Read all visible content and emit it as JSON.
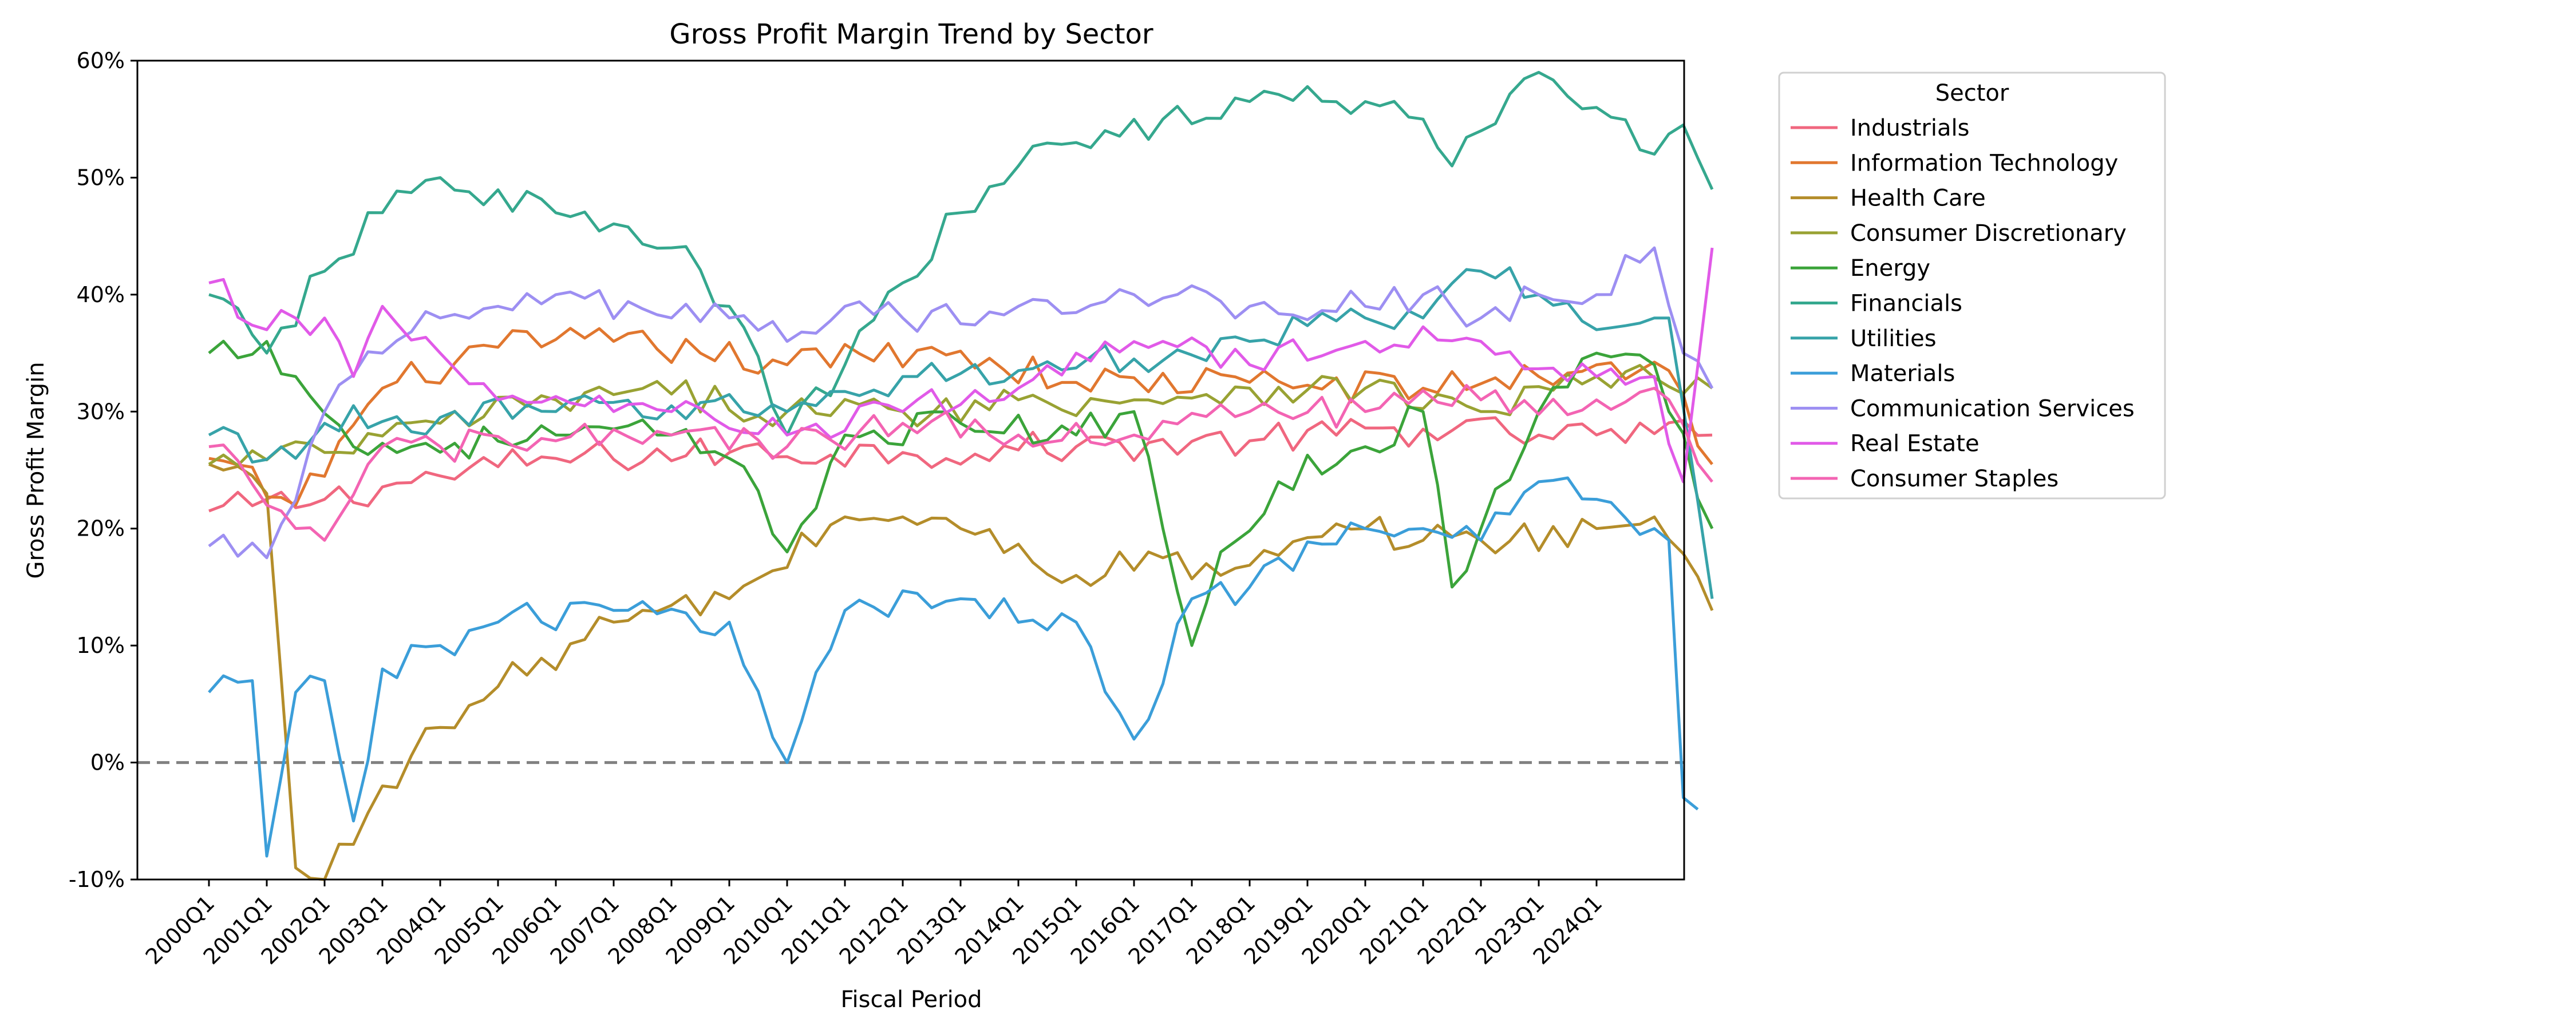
{
  "chart_data": {
    "type": "line",
    "title": "Gross Profit Margin Trend by Sector",
    "xlabel": "Fiscal Period",
    "ylabel": "Gross Profit Margin",
    "ylim": [
      -0.1,
      0.6
    ],
    "yticks": [
      -0.1,
      0.0,
      0.1,
      0.2,
      0.3,
      0.4,
      0.5,
      0.6
    ],
    "ytick_labels": [
      "-10%",
      "0%",
      "10%",
      "20%",
      "30%",
      "40%",
      "50%",
      "60%"
    ],
    "xtick_labels": [
      "2000Q1",
      "2001Q1",
      "2002Q1",
      "2003Q1",
      "2004Q1",
      "2005Q1",
      "2006Q1",
      "2007Q1",
      "2008Q1",
      "2009Q1",
      "2010Q1",
      "2011Q1",
      "2012Q1",
      "2013Q1",
      "2014Q1",
      "2015Q1",
      "2016Q1",
      "2017Q1",
      "2018Q1",
      "2019Q1",
      "2020Q1",
      "2021Q1",
      "2022Q1",
      "2023Q1",
      "2024Q1"
    ],
    "reference_line": {
      "y": 0.0,
      "style": "dashed",
      "color": "#808080"
    },
    "grid": false,
    "legend": {
      "title": "Sector",
      "placement": "outside-right"
    },
    "series": [
      {
        "name": "Industrials",
        "color": "#f0677f",
        "knots": [
          [
            0,
            0.215
          ],
          [
            8,
            0.225
          ],
          [
            16,
            0.245
          ],
          [
            24,
            0.26
          ],
          [
            36,
            0.265
          ],
          [
            48,
            0.265
          ],
          [
            60,
            0.27
          ],
          [
            72,
            0.275
          ],
          [
            84,
            0.285
          ],
          [
            92,
            0.28
          ],
          [
            96,
            0.28
          ],
          [
            104,
            0.28
          ]
        ]
      },
      {
        "name": "Information Technology",
        "color": "#e1772f",
        "knots": [
          [
            0,
            0.26
          ],
          [
            6,
            0.22
          ],
          [
            12,
            0.32
          ],
          [
            20,
            0.355
          ],
          [
            28,
            0.36
          ],
          [
            34,
            0.35
          ],
          [
            40,
            0.34
          ],
          [
            50,
            0.355
          ],
          [
            60,
            0.325
          ],
          [
            72,
            0.325
          ],
          [
            84,
            0.32
          ],
          [
            92,
            0.33
          ],
          [
            96,
            0.34
          ],
          [
            101,
            0.335
          ],
          [
            104,
            0.255
          ]
        ]
      },
      {
        "name": "Health Care",
        "color": "#b48d2a",
        "knots": [
          [
            0,
            0.255
          ],
          [
            1,
            0.25
          ],
          [
            3,
            0.245
          ],
          [
            4,
            0.23
          ],
          [
            6,
            -0.09
          ],
          [
            8,
            -0.1
          ],
          [
            12,
            -0.02
          ],
          [
            16,
            0.03
          ],
          [
            20,
            0.065
          ],
          [
            28,
            0.12
          ],
          [
            36,
            0.14
          ],
          [
            44,
            0.21
          ],
          [
            48,
            0.21
          ],
          [
            52,
            0.2
          ],
          [
            60,
            0.16
          ],
          [
            66,
            0.175
          ],
          [
            70,
            0.16
          ],
          [
            80,
            0.2
          ],
          [
            84,
            0.19
          ],
          [
            88,
            0.19
          ],
          [
            96,
            0.2
          ],
          [
            100,
            0.21
          ],
          [
            104,
            0.13
          ]
        ]
      },
      {
        "name": "Consumer Discretionary",
        "color": "#99a233",
        "knots": [
          [
            0,
            0.255
          ],
          [
            8,
            0.265
          ],
          [
            16,
            0.29
          ],
          [
            24,
            0.31
          ],
          [
            32,
            0.315
          ],
          [
            40,
            0.3
          ],
          [
            48,
            0.3
          ],
          [
            56,
            0.31
          ],
          [
            64,
            0.31
          ],
          [
            72,
            0.32
          ],
          [
            80,
            0.32
          ],
          [
            88,
            0.3
          ],
          [
            96,
            0.33
          ],
          [
            104,
            0.32
          ]
        ]
      },
      {
        "name": "Energy",
        "color": "#3ba43a",
        "knots": [
          [
            0,
            0.35
          ],
          [
            4,
            0.36
          ],
          [
            6,
            0.33
          ],
          [
            10,
            0.27
          ],
          [
            14,
            0.27
          ],
          [
            24,
            0.28
          ],
          [
            32,
            0.28
          ],
          [
            36,
            0.26
          ],
          [
            40,
            0.18
          ],
          [
            44,
            0.28
          ],
          [
            52,
            0.29
          ],
          [
            60,
            0.28
          ],
          [
            64,
            0.3
          ],
          [
            66,
            0.2
          ],
          [
            68,
            0.1
          ],
          [
            70,
            0.18
          ],
          [
            74,
            0.24
          ],
          [
            80,
            0.27
          ],
          [
            84,
            0.3
          ],
          [
            86,
            0.15
          ],
          [
            88,
            0.2
          ],
          [
            92,
            0.3
          ],
          [
            96,
            0.35
          ],
          [
            100,
            0.34
          ],
          [
            104,
            0.2
          ]
        ]
      },
      {
        "name": "Financials",
        "color": "#35a88e",
        "knots": [
          [
            0,
            0.4
          ],
          [
            4,
            0.35
          ],
          [
            8,
            0.42
          ],
          [
            12,
            0.47
          ],
          [
            16,
            0.5
          ],
          [
            24,
            0.47
          ],
          [
            32,
            0.44
          ],
          [
            36,
            0.39
          ],
          [
            40,
            0.28
          ],
          [
            44,
            0.34
          ],
          [
            48,
            0.41
          ],
          [
            52,
            0.47
          ],
          [
            56,
            0.51
          ],
          [
            60,
            0.53
          ],
          [
            66,
            0.55
          ],
          [
            72,
            0.565
          ],
          [
            80,
            0.565
          ],
          [
            84,
            0.55
          ],
          [
            86,
            0.51
          ],
          [
            88,
            0.54
          ],
          [
            92,
            0.59
          ],
          [
            96,
            0.56
          ],
          [
            100,
            0.52
          ],
          [
            102,
            0.545
          ],
          [
            104,
            0.49
          ]
        ]
      },
      {
        "name": "Utilities",
        "color": "#37a3a9",
        "knots": [
          [
            0,
            0.28
          ],
          [
            6,
            0.26
          ],
          [
            8,
            0.29
          ],
          [
            16,
            0.295
          ],
          [
            24,
            0.3
          ],
          [
            32,
            0.305
          ],
          [
            40,
            0.3
          ],
          [
            48,
            0.33
          ],
          [
            56,
            0.335
          ],
          [
            64,
            0.345
          ],
          [
            72,
            0.36
          ],
          [
            80,
            0.38
          ],
          [
            84,
            0.38
          ],
          [
            88,
            0.42
          ],
          [
            92,
            0.4
          ],
          [
            96,
            0.37
          ],
          [
            100,
            0.38
          ],
          [
            101,
            0.38
          ],
          [
            104,
            0.14
          ]
        ]
      },
      {
        "name": "Materials",
        "color": "#3b9ed9",
        "knots": [
          [
            0,
            0.06
          ],
          [
            3,
            0.07
          ],
          [
            4,
            -0.08
          ],
          [
            6,
            0.06
          ],
          [
            8,
            0.07
          ],
          [
            10,
            -0.05
          ],
          [
            12,
            0.08
          ],
          [
            16,
            0.1
          ],
          [
            20,
            0.12
          ],
          [
            28,
            0.13
          ],
          [
            36,
            0.12
          ],
          [
            40,
            0.0
          ],
          [
            44,
            0.13
          ],
          [
            52,
            0.14
          ],
          [
            60,
            0.12
          ],
          [
            64,
            0.02
          ],
          [
            68,
            0.14
          ],
          [
            72,
            0.15
          ],
          [
            80,
            0.2
          ],
          [
            84,
            0.2
          ],
          [
            88,
            0.19
          ],
          [
            92,
            0.24
          ],
          [
            96,
            0.225
          ],
          [
            100,
            0.2
          ],
          [
            101,
            0.19
          ],
          [
            102,
            -0.03
          ],
          [
            103,
            -0.04
          ]
        ]
      },
      {
        "name": "Communication Services",
        "color": "#9d8ff2",
        "knots": [
          [
            0,
            0.185
          ],
          [
            4,
            0.175
          ],
          [
            8,
            0.3
          ],
          [
            12,
            0.35
          ],
          [
            16,
            0.38
          ],
          [
            20,
            0.39
          ],
          [
            24,
            0.4
          ],
          [
            32,
            0.38
          ],
          [
            36,
            0.38
          ],
          [
            40,
            0.36
          ],
          [
            44,
            0.39
          ],
          [
            48,
            0.38
          ],
          [
            56,
            0.39
          ],
          [
            64,
            0.4
          ],
          [
            72,
            0.39
          ],
          [
            80,
            0.39
          ],
          [
            84,
            0.4
          ],
          [
            88,
            0.38
          ],
          [
            92,
            0.4
          ],
          [
            96,
            0.4
          ],
          [
            100,
            0.44
          ],
          [
            102,
            0.35
          ],
          [
            104,
            0.32
          ]
        ]
      },
      {
        "name": "Real Estate",
        "color": "#e15ae8",
        "knots": [
          [
            0,
            0.41
          ],
          [
            4,
            0.37
          ],
          [
            8,
            0.38
          ],
          [
            10,
            0.33
          ],
          [
            12,
            0.39
          ],
          [
            16,
            0.35
          ],
          [
            20,
            0.31
          ],
          [
            28,
            0.3
          ],
          [
            32,
            0.3
          ],
          [
            40,
            0.28
          ],
          [
            48,
            0.3
          ],
          [
            56,
            0.32
          ],
          [
            60,
            0.35
          ],
          [
            66,
            0.36
          ],
          [
            72,
            0.34
          ],
          [
            80,
            0.36
          ],
          [
            88,
            0.36
          ],
          [
            96,
            0.33
          ],
          [
            100,
            0.33
          ],
          [
            102,
            0.24
          ],
          [
            104,
            0.44
          ]
        ]
      },
      {
        "name": "Consumer Staples",
        "color": "#f364b3",
        "knots": [
          [
            0,
            0.27
          ],
          [
            4,
            0.22
          ],
          [
            8,
            0.19
          ],
          [
            12,
            0.27
          ],
          [
            16,
            0.27
          ],
          [
            24,
            0.275
          ],
          [
            32,
            0.28
          ],
          [
            40,
            0.27
          ],
          [
            48,
            0.29
          ],
          [
            56,
            0.28
          ],
          [
            60,
            0.29
          ],
          [
            64,
            0.28
          ],
          [
            72,
            0.3
          ],
          [
            80,
            0.3
          ],
          [
            88,
            0.31
          ],
          [
            96,
            0.31
          ],
          [
            100,
            0.32
          ],
          [
            104,
            0.24
          ]
        ]
      }
    ]
  }
}
